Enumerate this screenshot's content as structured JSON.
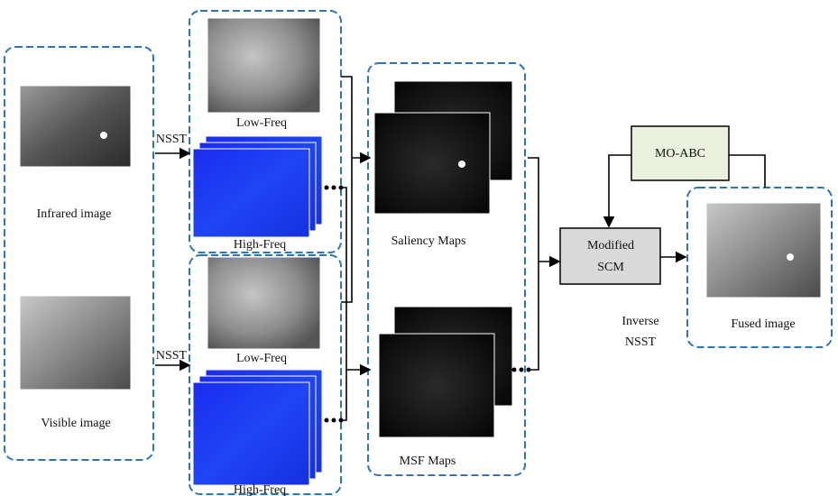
{
  "inputs": [
    {
      "label": "Infrared image",
      "transform": "NSST",
      "low": "Low-Freq",
      "high": "High-Freq"
    },
    {
      "label": "Visible image",
      "transform": "NSST",
      "low": "Low-Freq",
      "high": "High-Freq"
    }
  ],
  "maps": [
    "Saliency Maps",
    "MSF Maps"
  ],
  "fusion": [
    "Modified",
    "SCM"
  ],
  "optimizer": "MO-ABC",
  "inverse": [
    "Inverse",
    "NSST"
  ],
  "output": "Fused image"
}
